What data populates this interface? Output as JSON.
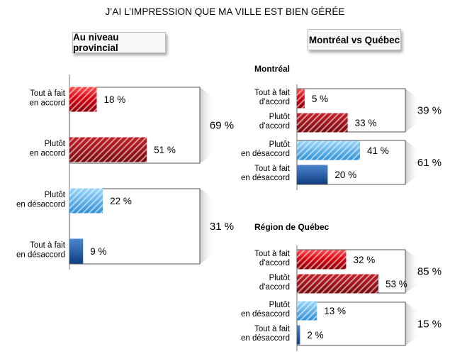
{
  "title": "J’AI L’IMPRESSION QUE MA VILLE EST BIEN GÉRÉE",
  "tabs": {
    "provincial": "Au niveau provincial",
    "versus": "Montréal vs Québec"
  },
  "subtitles": {
    "montreal": "Montréal",
    "quebec": "Région de Québec"
  },
  "colors": {
    "dark_red": "#c0000f",
    "mid_red": "#a5101c",
    "light_blue": "#4faee8",
    "dark_blue": "#1f5fa8"
  },
  "chart_data": [
    {
      "type": "bar",
      "name": "Au niveau provincial",
      "categories": [
        "Tout à fait en accord",
        "Plutôt en accord",
        "Plutôt en désaccord",
        "Tout à fait en désaccord"
      ],
      "values": [
        18,
        51,
        22,
        9
      ],
      "value_labels": [
        "18 %",
        "51 %",
        "22 %",
        "9 %"
      ],
      "totals": [
        {
          "label": "69 %",
          "value": 69,
          "covers": [
            0,
            1
          ]
        },
        {
          "label": "31 %",
          "value": 31,
          "covers": [
            2,
            3
          ]
        }
      ]
    },
    {
      "type": "bar",
      "name": "Montréal",
      "categories": [
        "Tout à fait d'accord",
        "Plutôt d'accord",
        "Plutôt en désaccord",
        "Tout à fait en désaccord"
      ],
      "values": [
        5,
        33,
        41,
        20
      ],
      "value_labels": [
        "5 %",
        "33 %",
        "41 %",
        "20 %"
      ],
      "totals": [
        {
          "label": "39 %",
          "value": 39,
          "covers": [
            0,
            1
          ]
        },
        {
          "label": "61 %",
          "value": 61,
          "covers": [
            2,
            3
          ]
        }
      ]
    },
    {
      "type": "bar",
      "name": "Région de Québec",
      "categories": [
        "Tout à fait d'accord",
        "Plutôt d'accord",
        "Plutôt en désaccord",
        "Tout à fait en désaccord"
      ],
      "values": [
        32,
        53,
        13,
        2
      ],
      "value_labels": [
        "32 %",
        "53 %",
        "13 %",
        "2 %"
      ],
      "totals": [
        {
          "label": "85 %",
          "value": 85,
          "covers": [
            0,
            1
          ]
        },
        {
          "label": "15 %",
          "value": 15,
          "covers": [
            2,
            3
          ]
        }
      ]
    }
  ]
}
